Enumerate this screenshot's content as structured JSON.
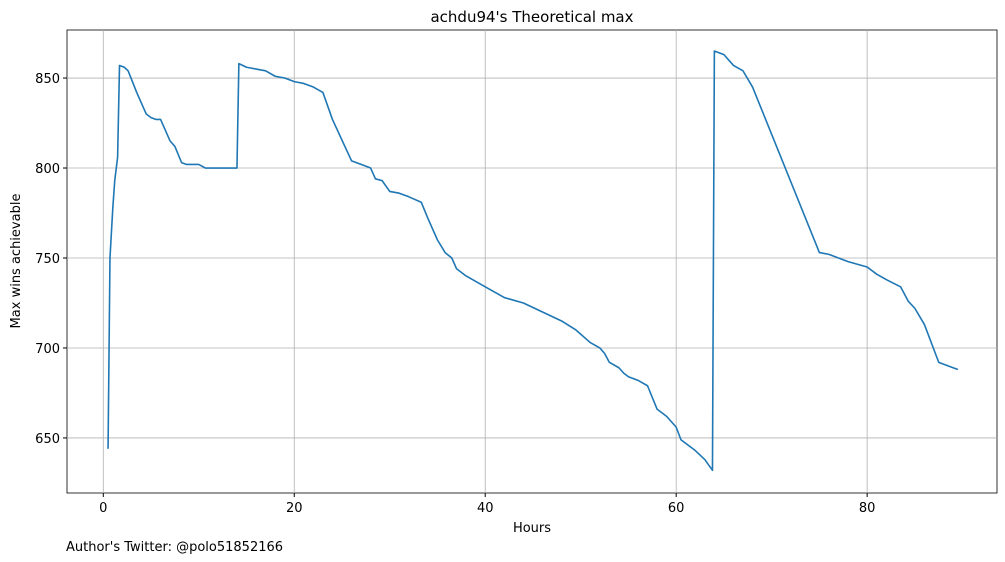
{
  "chart_data": {
    "type": "line",
    "title": "achdu94's Theoretical max",
    "x_label": "Hours",
    "y_label": "Max wins achievable",
    "annotation": "Author's Twitter: @polo51852166",
    "xlim": [
      -3.8,
      93.6
    ],
    "ylim": [
      619.4,
      876.7
    ],
    "xticks": [
      0,
      20,
      40,
      60,
      80
    ],
    "yticks": [
      650,
      700,
      750,
      800,
      850
    ],
    "grid": true,
    "series": [
      {
        "name": "Max wins",
        "color": "#1f77b4",
        "x": [
          0.5,
          0.7,
          1.0,
          1.2,
          1.5,
          1.7,
          2.2,
          2.6,
          3.5,
          4.5,
          5.0,
          5.5,
          6.0,
          7.0,
          7.5,
          8.2,
          8.7,
          10.0,
          10.7,
          14.0,
          14.2,
          15,
          16,
          17,
          18,
          19,
          20,
          21,
          22,
          23,
          24,
          26,
          27,
          28,
          28.5,
          29.2,
          30,
          31,
          32,
          33.3,
          34,
          35,
          35.8,
          36.5,
          37,
          38,
          40,
          42,
          44,
          46,
          48,
          49.5,
          51,
          52,
          52.5,
          53,
          54,
          54.5,
          55,
          56,
          57,
          58,
          59,
          60,
          60.5,
          62,
          63,
          63.8,
          64.0,
          65,
          66,
          67,
          68,
          75,
          76,
          78,
          80,
          81,
          82,
          83.5,
          84.3,
          85,
          86,
          87.5,
          89,
          89.5
        ],
        "values": [
          644,
          750,
          778,
          793,
          806,
          857,
          856,
          854,
          842,
          830,
          828,
          827,
          827,
          815,
          812,
          803,
          802,
          802,
          800,
          800,
          858,
          856,
          855,
          854,
          851,
          850,
          848,
          847,
          845,
          842,
          827,
          804,
          802,
          800,
          794,
          793,
          787,
          786,
          784,
          781,
          772,
          760,
          753,
          750,
          744,
          740,
          734,
          728,
          725,
          720,
          715,
          710,
          703,
          700,
          697,
          692,
          689,
          686,
          684,
          682,
          679,
          666,
          662,
          656,
          649,
          643,
          638,
          632,
          865,
          863,
          857,
          854,
          845,
          753,
          752,
          748,
          745,
          741,
          738,
          734,
          726,
          722,
          713,
          692,
          689,
          688
        ]
      }
    ]
  }
}
